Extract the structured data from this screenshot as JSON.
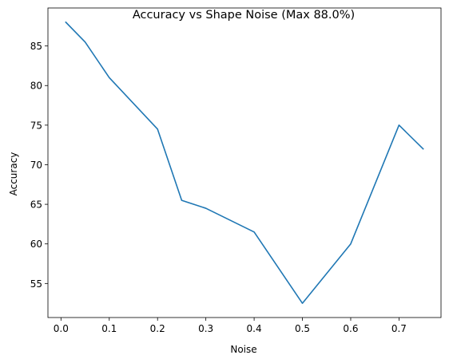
{
  "chart_data": {
    "type": "line",
    "title": "Accuracy vs Shape Noise (Max 88.0%)",
    "xlabel": "Noise",
    "ylabel": "Accuracy",
    "xlim": [
      -0.027,
      0.787
    ],
    "ylim": [
      50.7,
      89.8
    ],
    "xticks": [
      0.0,
      0.1,
      0.2,
      0.3,
      0.4,
      0.5,
      0.6,
      0.7
    ],
    "xtick_labels": [
      "0.0",
      "0.1",
      "0.2",
      "0.3",
      "0.4",
      "0.5",
      "0.6",
      "0.7"
    ],
    "yticks": [
      55,
      60,
      65,
      70,
      75,
      80,
      85
    ],
    "ytick_labels": [
      "55",
      "60",
      "65",
      "70",
      "75",
      "80",
      "85"
    ],
    "grid": false,
    "series": [
      {
        "color": "#1f77b4",
        "x": [
          0.01,
          0.05,
          0.1,
          0.2,
          0.25,
          0.3,
          0.4,
          0.5,
          0.6,
          0.7,
          0.75
        ],
        "y": [
          88.0,
          85.5,
          81.0,
          74.5,
          65.5,
          64.5,
          61.5,
          52.5,
          60.0,
          75.0,
          72.0
        ]
      }
    ]
  }
}
